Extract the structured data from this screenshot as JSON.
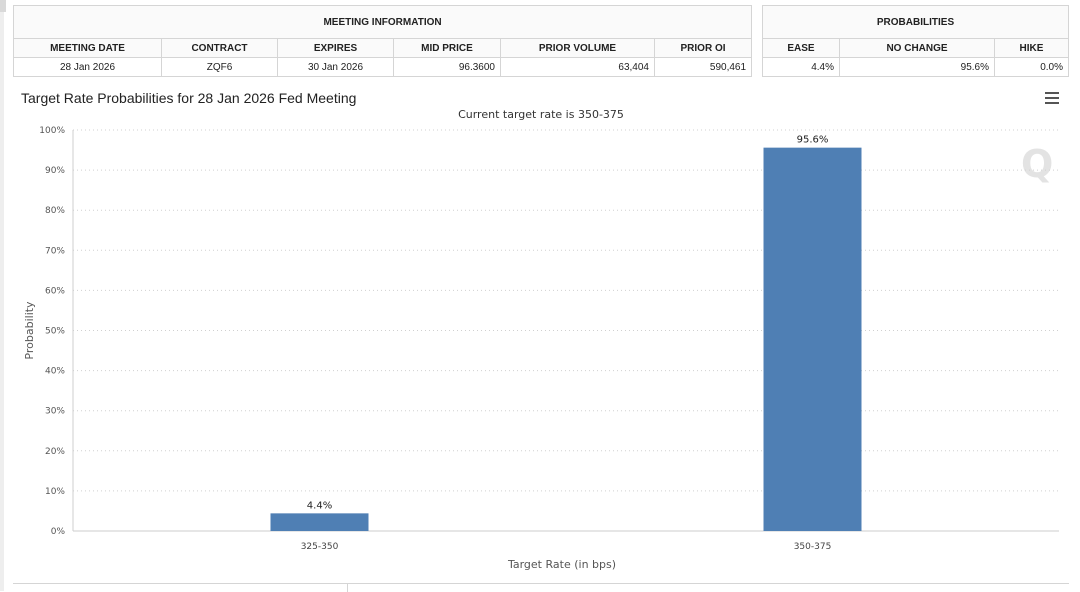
{
  "meeting_info": {
    "group_title": "MEETING INFORMATION",
    "headers": [
      "MEETING DATE",
      "CONTRACT",
      "EXPIRES",
      "MID PRICE",
      "PRIOR VOLUME",
      "PRIOR OI"
    ],
    "row": [
      "28 Jan 2026",
      "ZQF6",
      "30 Jan 2026",
      "96.3600",
      "63,404",
      "590,461"
    ]
  },
  "probabilities": {
    "group_title": "PROBABILITIES",
    "headers": [
      "EASE",
      "NO CHANGE",
      "HIKE"
    ],
    "row": [
      "4.4%",
      "95.6%",
      "0.0%"
    ]
  },
  "chart": {
    "menu_icon": "hamburger-menu-icon",
    "watermark": "Q"
  },
  "chart_data": {
    "type": "bar",
    "title": "Target Rate Probabilities for 28 Jan 2026 Fed Meeting",
    "subtitle": "Current target rate is 350-375",
    "xlabel": "Target Rate (in bps)",
    "ylabel": "Probability",
    "categories": [
      "325-350",
      "350-375"
    ],
    "values": [
      4.4,
      95.6
    ],
    "data_labels": [
      "4.4%",
      "95.6%"
    ],
    "ylim": [
      0,
      100
    ],
    "yticks": [
      0,
      10,
      20,
      30,
      40,
      50,
      60,
      70,
      80,
      90,
      100
    ],
    "ytick_labels": [
      "0%",
      "10%",
      "20%",
      "30%",
      "40%",
      "50%",
      "60%",
      "70%",
      "80%",
      "90%",
      "100%"
    ],
    "grid": true,
    "bar_color": "#4f7fb4"
  }
}
